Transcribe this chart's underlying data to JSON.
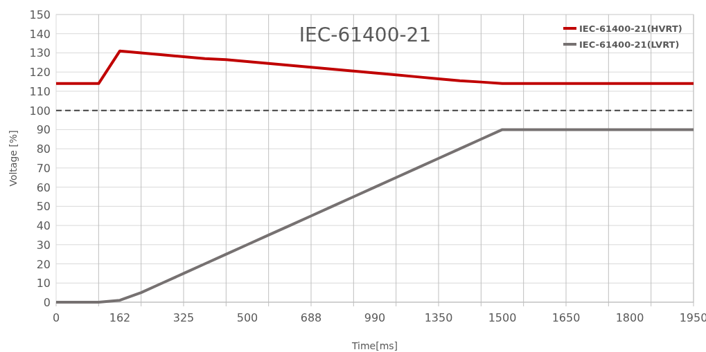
{
  "chart_data": {
    "type": "line",
    "title": "IEC-61400-21",
    "xlabel": "Time[ms]",
    "ylabel": "Voltage [%]",
    "categories": [
      "0",
      null,
      null,
      "162",
      null,
      null,
      "325",
      null,
      null,
      "500",
      null,
      null,
      "688",
      null,
      null,
      "990",
      null,
      null,
      "1350",
      null,
      null,
      "1500",
      null,
      null,
      "1650",
      null,
      null,
      "1800",
      null,
      null,
      "1950"
    ],
    "series": [
      {
        "name": "IEC-61400-21(HVRT)",
        "color": "#c00000",
        "values": [
          114,
          114,
          114,
          131,
          130,
          129,
          128,
          127,
          126.5,
          125.5,
          124.5,
          123.5,
          122.5,
          121.5,
          120.5,
          119.5,
          118.5,
          117.5,
          116.5,
          115.5,
          114.8,
          114,
          114,
          114,
          114,
          114,
          114,
          114,
          114,
          114,
          114
        ]
      },
      {
        "name": "IEC-61400-21(LVRT)",
        "color": "#767171",
        "values": [
          0,
          0,
          0,
          1,
          5,
          10,
          15,
          20,
          25,
          30,
          35,
          40,
          45,
          50,
          55,
          60,
          65,
          70,
          75,
          80,
          85,
          90,
          90,
          90,
          90,
          90,
          90,
          90,
          90,
          90,
          90
        ]
      }
    ],
    "ylim": [
      0,
      150
    ],
    "yticks": [
      0,
      10,
      20,
      30,
      40,
      50,
      60,
      70,
      80,
      90,
      100,
      110,
      120,
      130,
      140,
      150
    ],
    "ref_lines": [
      {
        "axis": "y",
        "value": 100,
        "color": "#404040",
        "line_style": "dashed"
      }
    ],
    "grid": true,
    "legend": "top right",
    "line_style": "solid",
    "marker": "none"
  }
}
